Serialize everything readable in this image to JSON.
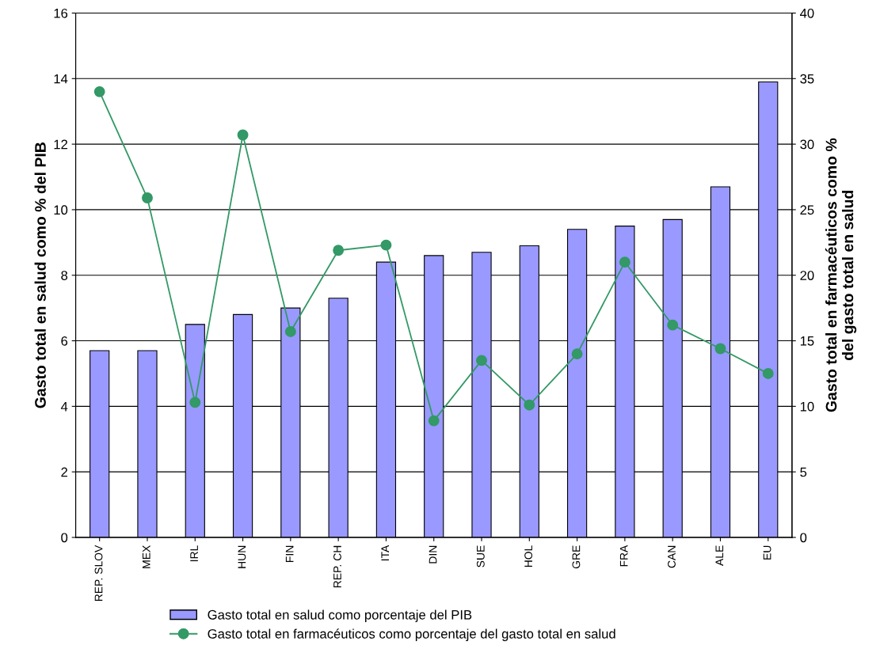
{
  "chart_data": {
    "type": "bar",
    "ylabel": "Gasto total en salud como % del PIB",
    "y2label": "Gasto total en farmacéuticos como %\ndel gasto total en salud",
    "categories": [
      "REP. SLOV",
      "MEX",
      "IRL",
      "HUN",
      "FIN",
      "REP. CH",
      "ITA",
      "DIN",
      "SUE",
      "HOL",
      "GRE",
      "FRA",
      "CAN",
      "ALE",
      "EU"
    ],
    "series": [
      {
        "name": "Gasto total en salud como porcentaje del PIB",
        "color": "#9999ff",
        "values": [
          5.7,
          5.7,
          6.5,
          6.8,
          7.0,
          7.3,
          8.4,
          8.6,
          8.7,
          8.9,
          9.4,
          9.5,
          9.7,
          10.7,
          13.9
        ]
      },
      {
        "name": "Gasto total en farmacéuticos como porcentaje del gasto total en salud",
        "type": "line",
        "axis": "y2",
        "color": "#339966",
        "marker": "circle",
        "values": [
          34.0,
          25.9,
          10.3,
          30.7,
          15.7,
          21.9,
          22.3,
          8.9,
          13.5,
          10.1,
          14.0,
          21.0,
          16.2,
          14.4,
          12.5
        ]
      }
    ],
    "ylim": [
      0,
      16
    ],
    "yticks": [
      0,
      2,
      4,
      6,
      8,
      10,
      12,
      14,
      16
    ],
    "y2lim": [
      0,
      40
    ],
    "y2ticks": [
      0,
      5,
      10,
      15,
      20,
      25,
      30,
      35,
      40
    ],
    "grid": "y",
    "legend": "bottom"
  }
}
